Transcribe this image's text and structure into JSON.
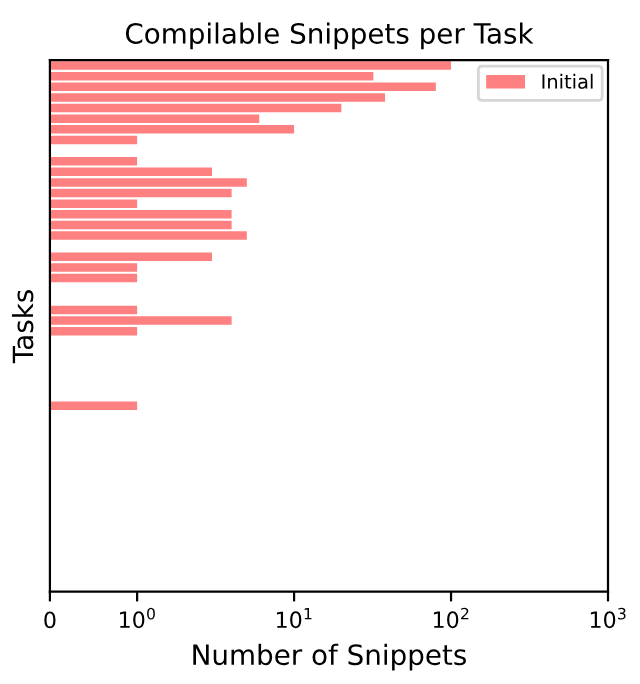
{
  "chart_data": {
    "type": "bar",
    "orientation": "horizontal",
    "title": "Compilable Snippets per Task",
    "xlabel": "Number of Snippets",
    "ylabel": "Tasks",
    "categories": [
      null,
      null,
      null,
      null,
      null,
      null,
      null,
      null,
      null,
      null,
      null,
      null,
      null,
      null,
      null,
      null,
      null,
      null,
      null,
      null,
      null,
      null,
      null,
      null,
      null,
      null,
      null,
      null,
      null,
      null,
      null,
      null,
      null,
      null,
      null,
      null,
      null,
      null,
      null,
      null,
      null,
      null,
      null,
      null,
      null,
      null,
      null,
      null,
      null,
      null
    ],
    "series": [
      {
        "name": "Initial",
        "color": "#ff8080",
        "values": [
          100,
          32,
          80,
          38,
          20,
          6,
          10,
          1,
          null,
          1,
          3,
          5,
          4,
          1,
          4,
          4,
          5,
          null,
          3,
          1,
          1,
          null,
          null,
          1,
          4,
          1,
          null,
          null,
          null,
          null,
          null,
          null,
          1,
          null,
          null,
          null,
          null,
          null,
          null,
          null,
          null,
          null,
          null,
          null,
          null,
          null,
          null,
          null,
          null,
          null
        ]
      }
    ],
    "log": "x",
    "xlim": [
      0,
      1000
    ],
    "xticks": [
      0,
      {
        "value": 1,
        "label": "10$^{0}$"
      },
      {
        "value": 10,
        "label": "10$^{1}$"
      },
      {
        "value": 100,
        "label": "10$^{2}$"
      },
      {
        "value": 1000,
        "label": "10$^{3}$"
      }
    ],
    "tick_labels": "x",
    "grid": false,
    "legend": "top right"
  }
}
